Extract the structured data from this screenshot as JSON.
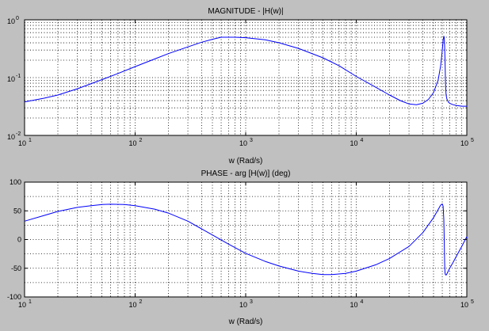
{
  "chart_data": [
    {
      "type": "line",
      "title": "MAGNITUDE - |H(w)|",
      "xlabel": "w (Rad/s)",
      "ylabel": "",
      "xscale": "log",
      "yscale": "log",
      "xlim": [
        10,
        100000
      ],
      "ylim": [
        0.01,
        1
      ],
      "grid": true,
      "x_ticks": [
        {
          "base": "10",
          "exp": "1"
        },
        {
          "base": "10",
          "exp": "2"
        },
        {
          "base": "10",
          "exp": "3"
        },
        {
          "base": "10",
          "exp": "4"
        },
        {
          "base": "10",
          "exp": "5"
        }
      ],
      "y_ticks": [
        {
          "base": "10",
          "exp": "-2"
        },
        {
          "base": "10",
          "exp": "-1"
        },
        {
          "base": "10",
          "exp": "0"
        }
      ],
      "series": [
        {
          "color": "#0000ff",
          "x": [
            10,
            15,
            20,
            30,
            50,
            70,
            100,
            150,
            200,
            300,
            400,
            500,
            600,
            700,
            800,
            1000,
            1500,
            2000,
            3000,
            5000,
            7000,
            10000,
            15000,
            20000,
            25000,
            30000,
            35000,
            40000,
            45000,
            50000,
            55000,
            58000,
            60000,
            61000,
            62000,
            62500,
            63000,
            63500,
            64000,
            64500,
            65000,
            66000,
            68000,
            70000,
            75000,
            80000,
            90000,
            100000
          ],
          "y": [
            0.038,
            0.044,
            0.05,
            0.064,
            0.092,
            0.118,
            0.155,
            0.21,
            0.26,
            0.34,
            0.41,
            0.46,
            0.5,
            0.5,
            0.5,
            0.49,
            0.45,
            0.4,
            0.32,
            0.22,
            0.16,
            0.105,
            0.068,
            0.05,
            0.04,
            0.035,
            0.034,
            0.036,
            0.042,
            0.055,
            0.09,
            0.16,
            0.3,
            0.45,
            0.52,
            0.5,
            0.35,
            0.2,
            0.1,
            0.065,
            0.05,
            0.043,
            0.038,
            0.036,
            0.034,
            0.033,
            0.032,
            0.032
          ]
        }
      ]
    },
    {
      "type": "line",
      "title": "PHASE - arg [H(w)] (deg)",
      "xlabel": "w (Rad/s)",
      "ylabel": "",
      "xscale": "log",
      "xlim": [
        10,
        100000
      ],
      "ylim": [
        -100,
        100
      ],
      "grid": true,
      "x_ticks": [
        {
          "base": "10",
          "exp": "1"
        },
        {
          "base": "10",
          "exp": "2"
        },
        {
          "base": "10",
          "exp": "3"
        },
        {
          "base": "10",
          "exp": "4"
        },
        {
          "base": "10",
          "exp": "5"
        }
      ],
      "y_ticks": [
        "100",
        "50",
        "0",
        "-50",
        "-100"
      ],
      "y_tick_values": [
        100,
        50,
        0,
        -50,
        -100
      ],
      "series": [
        {
          "color": "#0000ff",
          "x": [
            10,
            15,
            20,
            30,
            40,
            50,
            60,
            80,
            100,
            150,
            200,
            300,
            500,
            700,
            1000,
            1500,
            2000,
            3000,
            4000,
            5000,
            6000,
            8000,
            10000,
            15000,
            20000,
            30000,
            40000,
            50000,
            55000,
            58000,
            60000,
            61000,
            62000,
            62500,
            63000,
            63500,
            64000,
            65000,
            66000,
            68000,
            70000,
            75000,
            80000,
            90000,
            100000
          ],
          "y": [
            32,
            42,
            49,
            56,
            59,
            61,
            61.5,
            61,
            59,
            53,
            46,
            32,
            8,
            -8,
            -24,
            -38,
            -46,
            -55,
            -59,
            -61,
            -61,
            -59,
            -55,
            -44,
            -33,
            -12,
            12,
            38,
            52,
            60,
            62,
            58,
            35,
            0,
            -40,
            -58,
            -61,
            -62,
            -60,
            -55,
            -50,
            -40,
            -30,
            -12,
            5
          ]
        }
      ]
    }
  ]
}
